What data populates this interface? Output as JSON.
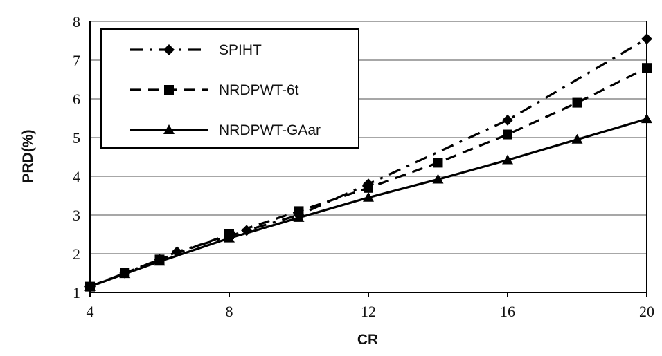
{
  "chart_data": {
    "type": "line",
    "xlabel": "CR",
    "ylabel": "PRD(%)",
    "xlim": [
      4,
      20
    ],
    "ylim": [
      1,
      8
    ],
    "xticks": [
      "4",
      "8",
      "12",
      "16",
      "20"
    ],
    "yticks": [
      "1",
      "2",
      "3",
      "4",
      "5",
      "6",
      "7",
      "8"
    ],
    "grid": "horizontal",
    "legend_position": "top-left",
    "series": [
      {
        "name": "SPIHT",
        "marker": "diamond",
        "line_style": "dash-dot",
        "x": [
          4,
          5,
          6,
          6.5,
          8,
          8.5,
          10,
          12,
          16,
          20
        ],
        "y": [
          1.15,
          1.5,
          1.85,
          2.05,
          2.45,
          2.6,
          3.0,
          3.8,
          5.45,
          7.55
        ]
      },
      {
        "name": "NRDPWT-6t",
        "marker": "square",
        "line_style": "dashed",
        "x": [
          4,
          5,
          6,
          8,
          10,
          12,
          14,
          16,
          18,
          20
        ],
        "y": [
          1.15,
          1.5,
          1.85,
          2.5,
          3.1,
          3.7,
          4.35,
          5.08,
          5.9,
          6.8
        ]
      },
      {
        "name": "NRDPWT-GAar",
        "marker": "triangle",
        "line_style": "solid",
        "x": [
          4,
          5,
          6,
          8,
          10,
          12,
          14,
          16,
          18,
          20
        ],
        "y": [
          1.15,
          1.48,
          1.8,
          2.4,
          2.93,
          3.45,
          3.92,
          4.42,
          4.95,
          5.48
        ]
      }
    ]
  }
}
